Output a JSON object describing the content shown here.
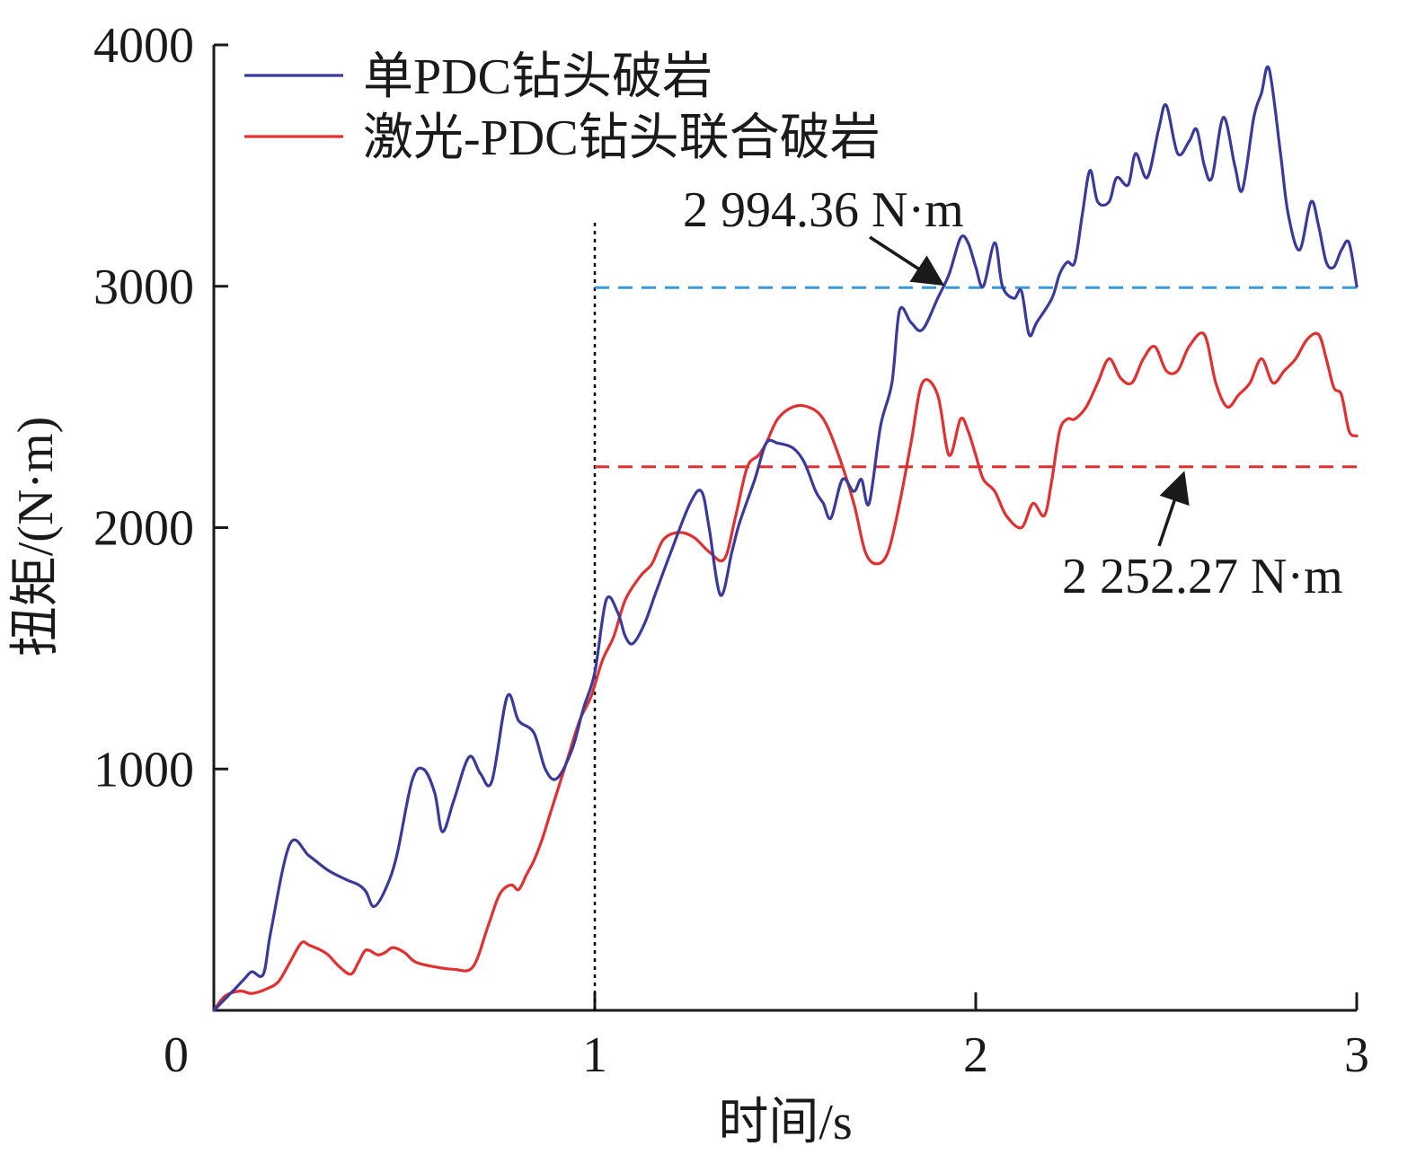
{
  "chart_data": {
    "type": "line",
    "xlabel": "时间/s",
    "ylabel": "扭矩/(N·m)",
    "xlim": [
      0,
      3
    ],
    "ylim": [
      0,
      4000
    ],
    "xticks": [
      1,
      2,
      3
    ],
    "yticks": [
      1000,
      2000,
      3000,
      4000
    ],
    "origin_label": "0",
    "grid": false,
    "legend_position": "top-left",
    "series": [
      {
        "name": "单PDC钻头破岩",
        "color": "#3a3a9c",
        "x": [
          0,
          0.05,
          0.08,
          0.1,
          0.13,
          0.15,
          0.2,
          0.25,
          0.3,
          0.35,
          0.38,
          0.4,
          0.42,
          0.45,
          0.48,
          0.52,
          0.55,
          0.58,
          0.6,
          0.63,
          0.67,
          0.7,
          0.73,
          0.77,
          0.8,
          0.84,
          0.87,
          0.9,
          0.94,
          0.97,
          1.0,
          1.03,
          1.06,
          1.08,
          1.1,
          1.13,
          1.16,
          1.2,
          1.25,
          1.28,
          1.3,
          1.33,
          1.36,
          1.38,
          1.42,
          1.45,
          1.48,
          1.52,
          1.55,
          1.58,
          1.6,
          1.62,
          1.65,
          1.68,
          1.7,
          1.72,
          1.75,
          1.78,
          1.8,
          1.83,
          1.86,
          1.9,
          1.93,
          1.96,
          1.98,
          2.0,
          2.02,
          2.05,
          2.07,
          2.1,
          2.12,
          2.14,
          2.16,
          2.2,
          2.22,
          2.24,
          2.26,
          2.28,
          2.3,
          2.32,
          2.35,
          2.37,
          2.4,
          2.42,
          2.45,
          2.48,
          2.5,
          2.53,
          2.56,
          2.58,
          2.6,
          2.62,
          2.65,
          2.68,
          2.7,
          2.73,
          2.75,
          2.77,
          2.8,
          2.82,
          2.85,
          2.88,
          2.9,
          2.92,
          2.94,
          2.96,
          2.98,
          3.0
        ],
        "values": [
          0,
          80,
          130,
          160,
          150,
          330,
          690,
          640,
          580,
          540,
          520,
          490,
          430,
          500,
          640,
          950,
          1000,
          900,
          740,
          870,
          1050,
          980,
          950,
          1300,
          1200,
          1150,
          1000,
          960,
          1080,
          1250,
          1400,
          1700,
          1650,
          1550,
          1520,
          1600,
          1730,
          1900,
          2100,
          2150,
          2000,
          1720,
          1900,
          2020,
          2200,
          2350,
          2350,
          2330,
          2270,
          2150,
          2100,
          2040,
          2200,
          2150,
          2200,
          2100,
          2420,
          2600,
          2900,
          2850,
          2820,
          2950,
          3050,
          3200,
          3180,
          3080,
          3000,
          3180,
          3000,
          2950,
          2980,
          2800,
          2850,
          2950,
          3050,
          3100,
          3100,
          3300,
          3480,
          3350,
          3350,
          3450,
          3420,
          3550,
          3450,
          3650,
          3750,
          3550,
          3600,
          3650,
          3500,
          3450,
          3700,
          3500,
          3400,
          3700,
          3800,
          3900,
          3550,
          3300,
          3150,
          3350,
          3250,
          3100,
          3080,
          3150,
          3180,
          3000
        ]
      },
      {
        "name": "激光-PDC钻头联合破岩",
        "color": "#e03030",
        "x": [
          0,
          0.03,
          0.07,
          0.1,
          0.14,
          0.17,
          0.2,
          0.23,
          0.25,
          0.28,
          0.3,
          0.33,
          0.36,
          0.38,
          0.4,
          0.43,
          0.45,
          0.47,
          0.5,
          0.53,
          0.58,
          0.63,
          0.68,
          0.72,
          0.75,
          0.78,
          0.8,
          0.82,
          0.84,
          0.86,
          0.88,
          0.9,
          0.93,
          0.96,
          0.99,
          1.02,
          1.05,
          1.08,
          1.12,
          1.15,
          1.18,
          1.22,
          1.26,
          1.3,
          1.34,
          1.37,
          1.4,
          1.43,
          1.45,
          1.48,
          1.52,
          1.56,
          1.6,
          1.64,
          1.68,
          1.71,
          1.74,
          1.77,
          1.8,
          1.83,
          1.86,
          1.9,
          1.93,
          1.96,
          1.98,
          2.0,
          2.02,
          2.05,
          2.08,
          2.12,
          2.15,
          2.18,
          2.2,
          2.22,
          2.24,
          2.26,
          2.29,
          2.32,
          2.35,
          2.38,
          2.41,
          2.44,
          2.47,
          2.5,
          2.53,
          2.56,
          2.6,
          2.63,
          2.66,
          2.69,
          2.72,
          2.75,
          2.78,
          2.81,
          2.84,
          2.87,
          2.9,
          2.92,
          2.94,
          2.96,
          2.98,
          3.0
        ],
        "values": [
          0,
          60,
          80,
          70,
          90,
          120,
          200,
          280,
          270,
          250,
          230,
          180,
          150,
          200,
          250,
          230,
          240,
          260,
          240,
          200,
          180,
          170,
          180,
          350,
          480,
          520,
          500,
          560,
          620,
          700,
          800,
          900,
          1050,
          1200,
          1300,
          1450,
          1550,
          1700,
          1800,
          1850,
          1950,
          1980,
          1960,
          1900,
          1870,
          2050,
          2250,
          2300,
          2350,
          2450,
          2500,
          2500,
          2450,
          2300,
          2100,
          1900,
          1850,
          1900,
          2100,
          2350,
          2600,
          2550,
          2300,
          2450,
          2400,
          2300,
          2200,
          2150,
          2050,
          2000,
          2100,
          2050,
          2200,
          2400,
          2450,
          2450,
          2500,
          2600,
          2700,
          2620,
          2600,
          2700,
          2750,
          2650,
          2650,
          2750,
          2800,
          2600,
          2500,
          2550,
          2600,
          2700,
          2600,
          2650,
          2700,
          2780,
          2800,
          2700,
          2580,
          2550,
          2400,
          2380
        ]
      }
    ],
    "reference_lines": [
      {
        "value": 2994.36,
        "x_from": 1.0,
        "x_to": 3.0,
        "color": "#3a9ad9",
        "style": "dashed"
      },
      {
        "value": 2252.27,
        "x_from": 1.0,
        "x_to": 3.0,
        "color": "#e03030",
        "style": "dashed"
      }
    ],
    "vertical_marker": {
      "x": 1.0,
      "style": "dotted",
      "color": "#000000"
    },
    "annotations": [
      {
        "text": "2 994.36 N·m",
        "arrow_to": [
          1.93,
          2994.36
        ]
      },
      {
        "text": "2 252.27 N·m",
        "arrow_to": [
          2.55,
          2252.27
        ]
      }
    ]
  }
}
